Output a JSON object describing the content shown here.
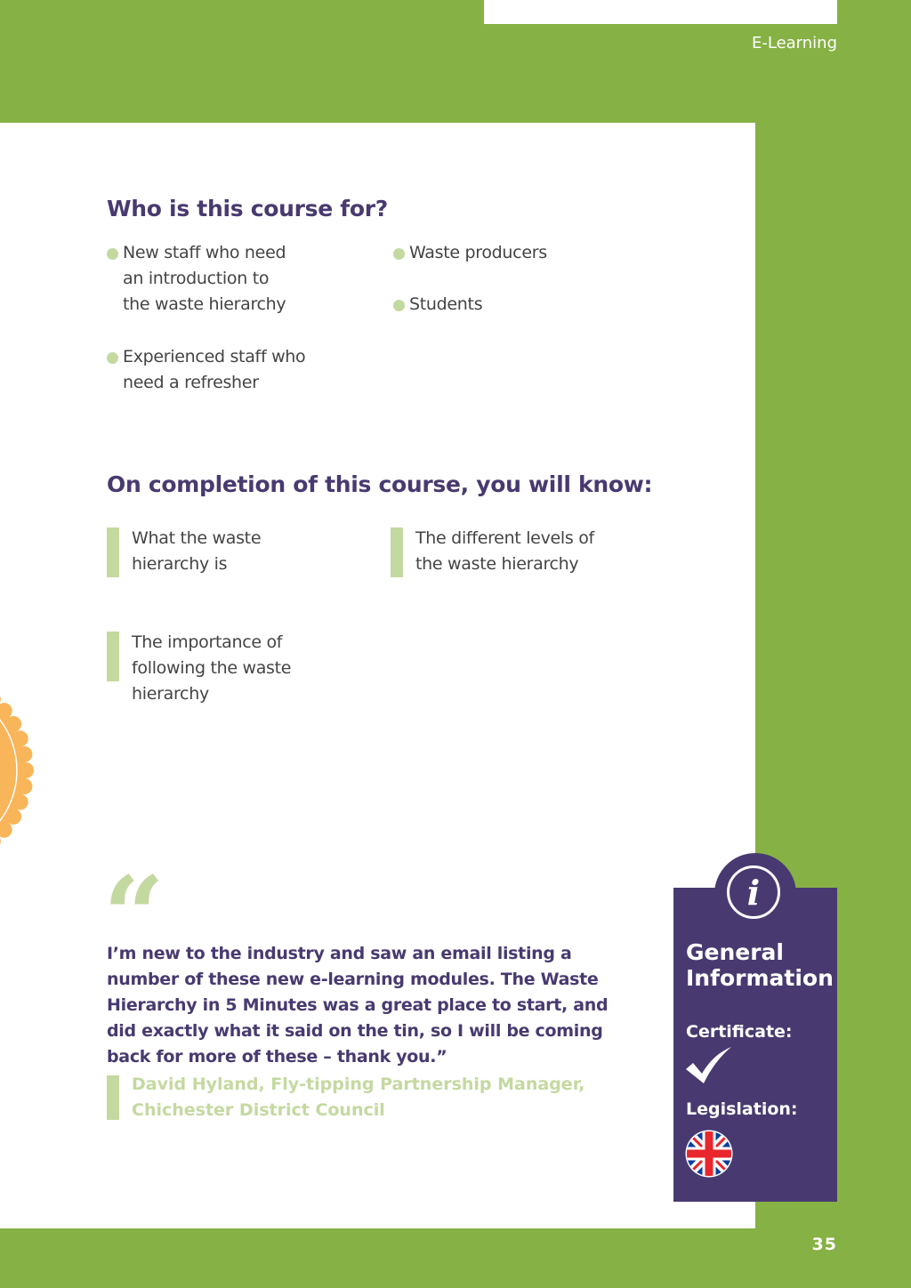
{
  "header": {
    "section": "E-Learning"
  },
  "audience": {
    "heading": "Who is this course for?",
    "items": [
      "New staff who need an introduction to the waste hierarchy",
      "Experienced staff who need a refresher",
      "Waste producers",
      "Students"
    ]
  },
  "outcomes": {
    "heading": "On completion of this course, you will know:",
    "items": [
      "What the waste hierarchy is",
      "The different levels of the waste hierarchy",
      "The importance of following the waste hierarchy"
    ]
  },
  "testimonial": {
    "quote": "I’m new to the industry and saw an email listing a number of these new e-learning modules. The Waste Hierarchy in 5 Minutes was a great place to start, and did exactly what it said on the tin, so I will be coming back for more of these – thank you.”",
    "author": "David Hyland, Fly-tipping Partnership Manager,",
    "organisation": "Chichester District Council"
  },
  "info": {
    "title_line1": "General",
    "title_line2": "Information",
    "certificate_label": "Certificate:",
    "certificate_icon": "checkmark-icon",
    "legislation_label": "Legislation:",
    "legislation_icon": "uk-flag-icon"
  },
  "footer": {
    "page_number": "35"
  },
  "colors": {
    "green": "#86b144",
    "purple": "#483a70",
    "light_green": "#c4d9a0",
    "orange": "#f9b55a"
  }
}
